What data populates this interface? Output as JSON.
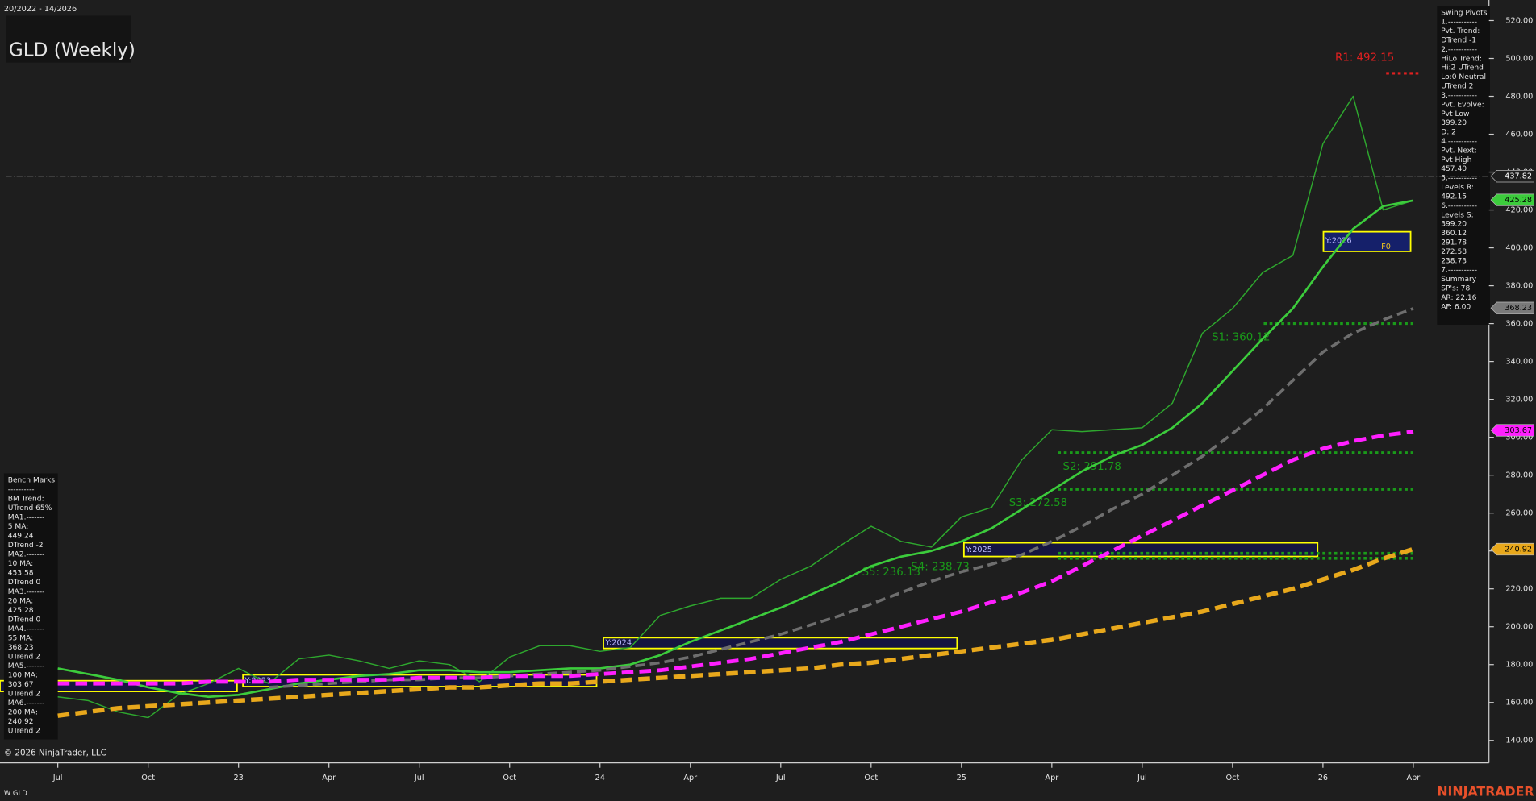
{
  "chart_data": {
    "type": "line",
    "title": "GLD (Weekly)",
    "date_range": "20/2022 - 14/2026",
    "symbol": "W GLD",
    "copyright": "© 2026 NinjaTrader, LLC",
    "brand": "NINJATRADER",
    "f0_label": "F0",
    "categories": [
      "Jul",
      null,
      null,
      "Oct",
      null,
      null,
      "23",
      null,
      null,
      "Apr",
      null,
      null,
      "Jul",
      null,
      null,
      "Oct",
      null,
      null,
      "24",
      null,
      null,
      "Apr",
      null,
      null,
      "Jul",
      null,
      null,
      "Oct",
      null,
      null,
      "25",
      null,
      null,
      "Apr",
      null,
      null,
      "Jul",
      null,
      null,
      "Oct",
      null,
      null,
      "26",
      null,
      null,
      "Apr"
    ],
    "series": [
      {
        "color": "#2ea82e",
        "width": 1.2,
        "dash": "",
        "values": [
          163,
          161,
          155,
          152,
          164,
          170,
          178,
          170,
          183,
          185,
          182,
          178,
          182,
          180,
          171,
          184,
          190,
          190,
          187,
          189,
          206,
          211,
          215,
          215,
          225,
          232,
          243,
          253,
          245,
          242,
          258,
          263,
          288,
          304,
          303,
          304,
          305,
          318,
          355,
          368,
          387,
          396,
          455,
          480,
          420,
          425
        ]
      },
      {
        "color": "#3ccc3c",
        "width": 2.2,
        "dash": "",
        "values": [
          178,
          175,
          172,
          168,
          165,
          163,
          164,
          167,
          170,
          172,
          174,
          175,
          177,
          177,
          176,
          176,
          177,
          178,
          178,
          180,
          185,
          192,
          198,
          204,
          210,
          217,
          224,
          232,
          237,
          240,
          245,
          252,
          262,
          272,
          282,
          290,
          296,
          305,
          318,
          335,
          352,
          368,
          390,
          410,
          422,
          425
        ]
      },
      {
        "color": "#6e6e6e",
        "width": 3,
        "dash": "10 5",
        "values": [
          null,
          null,
          null,
          null,
          null,
          null,
          null,
          168,
          169,
          170,
          171,
          172,
          172,
          173,
          173,
          174,
          175,
          176,
          177,
          179,
          181,
          184,
          188,
          192,
          196,
          201,
          206,
          212,
          218,
          224,
          229,
          233,
          238,
          245,
          253,
          262,
          270,
          280,
          290,
          302,
          315,
          330,
          345,
          355,
          362,
          368
        ]
      },
      {
        "color": "#ff1fff",
        "width": 4,
        "dash": "12 6",
        "values": [
          170,
          170,
          170,
          170,
          170,
          171,
          171,
          171,
          172,
          172,
          172,
          172,
          173,
          173,
          173,
          174,
          174,
          174,
          175,
          176,
          177,
          179,
          181,
          183,
          186,
          189,
          192,
          196,
          200,
          204,
          208,
          213,
          218,
          224,
          232,
          240,
          248,
          256,
          264,
          272,
          280,
          288,
          294,
          298,
          301,
          303
        ]
      },
      {
        "color": "#e8a81c",
        "width": 4.5,
        "dash": "12 6",
        "values": [
          153,
          155,
          157,
          158,
          159,
          160,
          161,
          162,
          163,
          164,
          165,
          166,
          167,
          168,
          168,
          169,
          170,
          170,
          171,
          172,
          173,
          174,
          175,
          176,
          177,
          178,
          180,
          181,
          183,
          185,
          187,
          189,
          191,
          193,
          196,
          199,
          202,
          205,
          208,
          212,
          216,
          220,
          225,
          230,
          236,
          241
        ]
      }
    ],
    "ylim": [
      140,
      520
    ],
    "yticks": [
      {
        "value": 140,
        "label": "140.00"
      },
      {
        "value": 160,
        "label": "160.00"
      },
      {
        "value": 180,
        "label": "180.00"
      },
      {
        "value": 200,
        "label": "200.00"
      },
      {
        "value": 220,
        "label": "220.00"
      },
      {
        "value": 240,
        "label": "240.00"
      },
      {
        "value": 260,
        "label": "260.00"
      },
      {
        "value": 280,
        "label": "280.00"
      },
      {
        "value": 300,
        "label": "300.00"
      },
      {
        "value": 320,
        "label": "320.00"
      },
      {
        "value": 340,
        "label": "340.00"
      },
      {
        "value": 360,
        "label": "360.00"
      },
      {
        "value": 380,
        "label": "380.00"
      },
      {
        "value": 400,
        "label": "400.00"
      },
      {
        "value": 420,
        "label": "420.00"
      },
      {
        "value": 440,
        "label": "440.00"
      },
      {
        "value": 460,
        "label": "460.00"
      },
      {
        "value": 480,
        "label": "480.00"
      },
      {
        "value": 500,
        "label": "500.00"
      },
      {
        "value": 520,
        "label": "520.00"
      }
    ],
    "levels": [
      {
        "label": "R1: 492.15",
        "value": 492.15,
        "color": "#e02020"
      },
      {
        "label": "S1: 360.12",
        "value": 360.12,
        "color": "#1a9a1a"
      },
      {
        "label": "S2: 291.78",
        "value": 291.78,
        "color": "#1a9a1a"
      },
      {
        "label": "S3: 272.58",
        "value": 272.58,
        "color": "#1a9a1a"
      },
      {
        "label": "S4: 238.73",
        "value": 238.73,
        "color": "#1a9a1a"
      },
      {
        "label": "S5: 236.13",
        "value": 236.13,
        "color": "#1a9a1a"
      }
    ],
    "price_markers": [
      {
        "value": 437.82,
        "color": "#1e1e1e",
        "text_color": "#ffffff"
      },
      {
        "value": 425.28,
        "color": "#3ccc3c",
        "text_color": "#000000"
      },
      {
        "value": 368.23,
        "color": "#7a7a7a",
        "text_color": "#000000"
      },
      {
        "value": 303.67,
        "color": "#ff1fff",
        "text_color": "#000000"
      },
      {
        "value": 240.92,
        "color": "#e8a81c",
        "text_color": "#000000"
      }
    ],
    "year_boxes": [
      "Y:2023",
      "Y:2024",
      "Y:2025",
      "Y:2026"
    ],
    "swing_pivots": [
      "Swing Pivots",
      "1.-----------",
      "Pvt. Trend:",
      "DTrend -1",
      "2.-----------",
      "HiLo Trend:",
      "Hi:2 UTrend",
      "Lo:0 Neutral",
      "UTrend 2",
      "3.-----------",
      "Pvt. Evolve:",
      "Pvt Low",
      "399.20",
      "D: 2",
      "4.-----------",
      "Pvt. Next:",
      "Pvt High",
      "457.40",
      "5.-----------",
      "Levels R:",
      "492.15",
      "6.-----------",
      "Levels S:",
      "399.20",
      "360.12",
      "291.78",
      "272.58",
      "238.73",
      "7.-----------",
      "Summary",
      "SP's: 78",
      "AR: 22.16",
      "AF: 6.00"
    ],
    "bench_marks": [
      "Bench Marks",
      "----------",
      "BM Trend:",
      "UTrend 65%",
      "MA1.-------",
      "5 MA:",
      "449.24",
      "DTrend -2",
      "MA2.-------",
      "10 MA:",
      "453.58",
      "DTrend 0",
      "MA3.-------",
      "20 MA:",
      "425.28",
      "DTrend 0",
      "MA4.-------",
      "55 MA:",
      "368.23",
      "UTrend 2",
      "MA5.-------",
      "100 MA:",
      "303.67",
      "UTrend 2",
      "MA6.-------",
      "200 MA:",
      "240.92",
      "UTrend 2"
    ]
  }
}
